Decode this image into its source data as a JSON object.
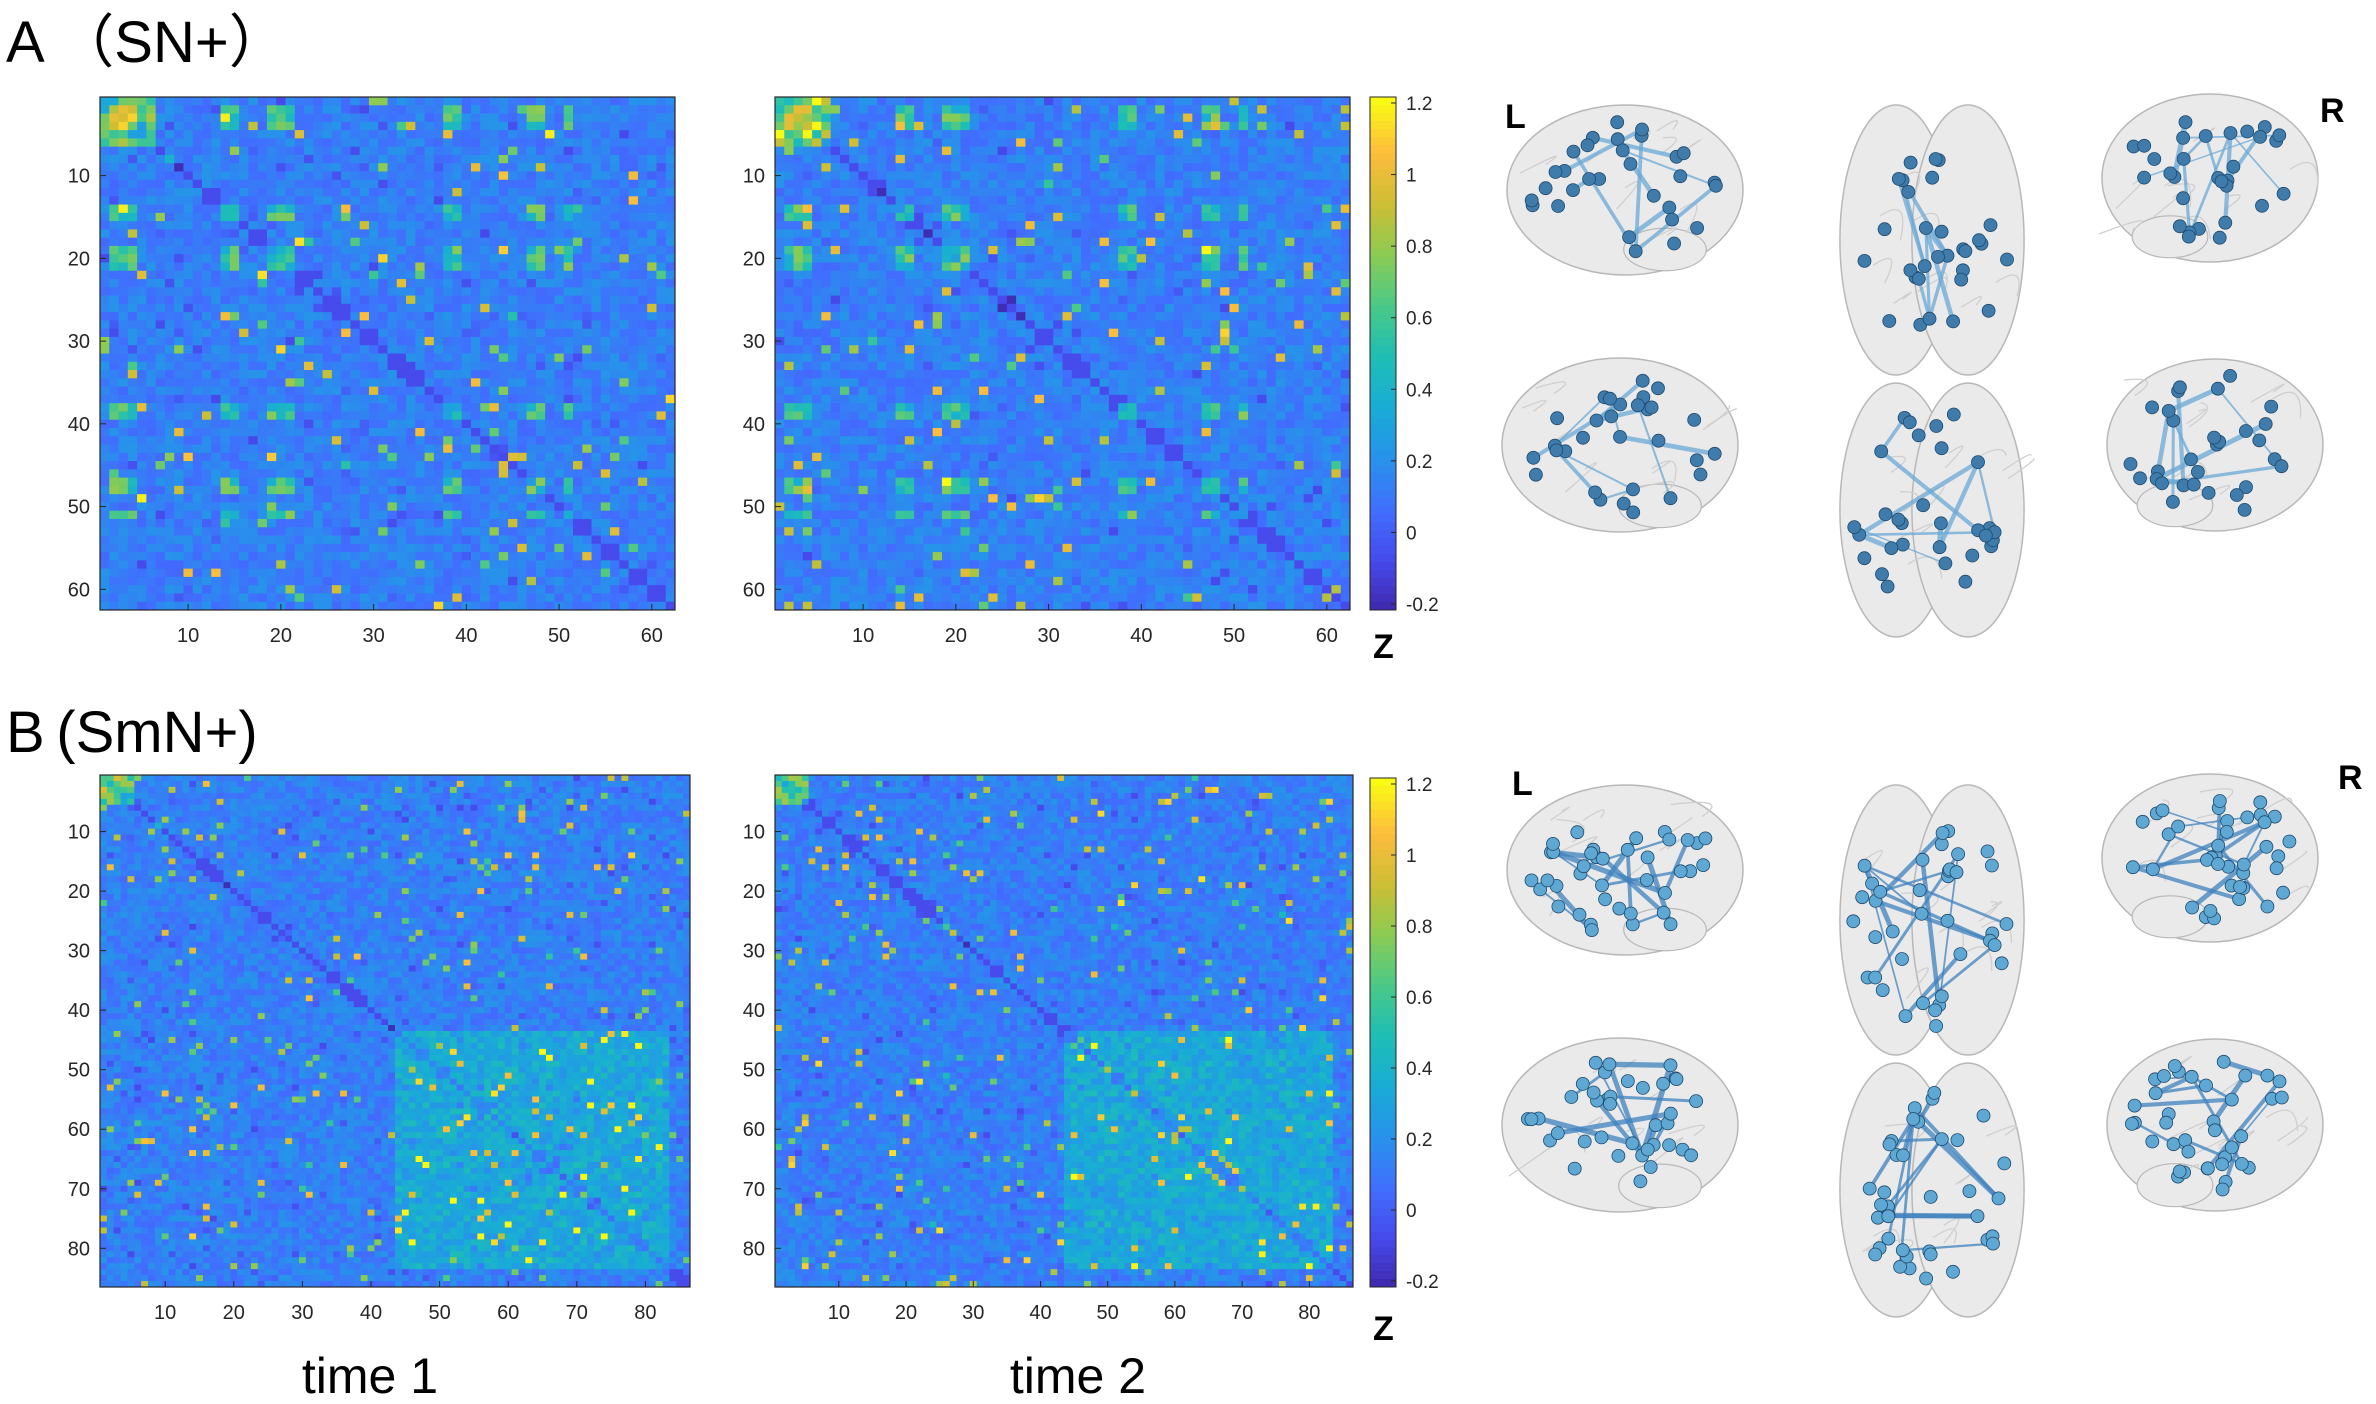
{
  "panels": [
    {
      "label": "A （SN+）",
      "matrix_size": 62,
      "ticks": [
        10,
        20,
        30,
        40,
        50,
        60
      ],
      "colorbar_ticks": [
        "1.2",
        "1",
        "0.8",
        "0.6",
        "0.4",
        "0.2",
        "0",
        "-0.2"
      ],
      "colorbar_label": "Z",
      "brain_labels": {
        "left": "L",
        "right": "R"
      }
    },
    {
      "label": "B (SmN+)",
      "matrix_size": 86,
      "ticks": [
        10,
        20,
        30,
        40,
        50,
        60,
        70,
        80
      ],
      "colorbar_ticks": [
        "1.2",
        "1",
        "0.8",
        "0.6",
        "0.4",
        "0.2",
        "0",
        "-0.2"
      ],
      "colorbar_label": "Z",
      "brain_labels": {
        "left": "L",
        "right": "R"
      }
    }
  ],
  "column_labels": [
    "time 1",
    "time 2"
  ],
  "chart_data": [
    {
      "type": "heatmap",
      "title": "",
      "panel": "A (SN+)",
      "condition": "time 1",
      "size": 62,
      "zlim": [
        -0.2,
        1.2
      ],
      "colormap": "parula",
      "colorbar_label": "Z",
      "x_ticks": [
        10,
        20,
        30,
        40,
        50,
        60
      ],
      "y_ticks": [
        10,
        20,
        30,
        40,
        50,
        60
      ]
    },
    {
      "type": "heatmap",
      "title": "",
      "panel": "A (SN+)",
      "condition": "time 2",
      "size": 62,
      "zlim": [
        -0.2,
        1.2
      ],
      "colormap": "parula",
      "colorbar_label": "Z",
      "x_ticks": [
        10,
        20,
        30,
        40,
        50,
        60
      ],
      "y_ticks": [
        10,
        20,
        30,
        40,
        50,
        60
      ]
    },
    {
      "type": "heatmap",
      "title": "",
      "panel": "B (SmN+)",
      "condition": "time 1",
      "size": 86,
      "zlim": [
        -0.2,
        1.2
      ],
      "colormap": "parula",
      "colorbar_label": "Z",
      "x_ticks": [
        10,
        20,
        30,
        40,
        50,
        60,
        70,
        80
      ],
      "y_ticks": [
        10,
        20,
        30,
        40,
        50,
        60,
        70,
        80
      ]
    },
    {
      "type": "heatmap",
      "title": "",
      "panel": "B (SmN+)",
      "condition": "time 2",
      "size": 86,
      "zlim": [
        -0.2,
        1.2
      ],
      "colormap": "parula",
      "colorbar_label": "Z",
      "x_ticks": [
        10,
        20,
        30,
        40,
        50,
        60,
        70,
        80
      ],
      "y_ticks": [
        10,
        20,
        30,
        40,
        50,
        60,
        70,
        80
      ]
    }
  ],
  "colors": {
    "node_A": "#3f7cab",
    "node_B": "#5ea8d3",
    "edge_A": "#6aa8d6",
    "edge_B": "#3f82bd",
    "brain_fill": "#eaeaea",
    "brain_stroke": "#b8b8b8"
  }
}
